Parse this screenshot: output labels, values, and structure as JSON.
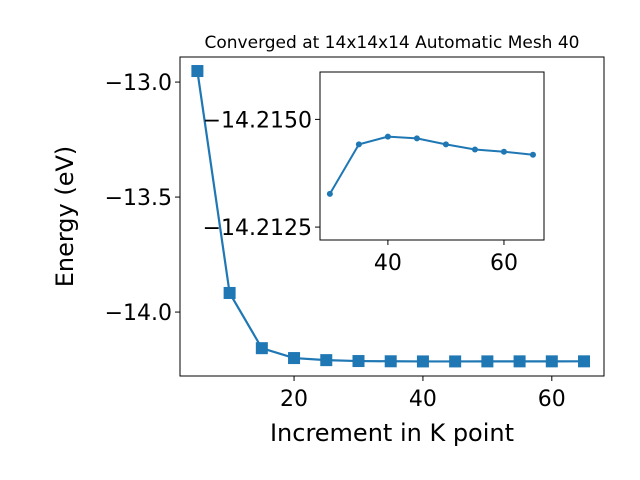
{
  "chart_data": [
    {
      "type": "line",
      "title": "Converged at 14x14x14 Automatic Mesh 40",
      "x_label": "Increment in K point",
      "y_label": "Energy (eV)",
      "x": [
        5,
        10,
        15,
        20,
        25,
        30,
        35,
        40,
        45,
        50,
        55,
        60,
        65
      ],
      "series": [
        {
          "name": "Energy",
          "color": "#1f77b4",
          "marker": "square",
          "values": [
            -12.952,
            -13.917,
            -14.157,
            -14.2,
            -14.209,
            -14.213,
            -14.214,
            -14.2146,
            -14.2146,
            -14.2144,
            -14.2143,
            -14.2143,
            -14.2142
          ]
        }
      ],
      "xlim": [
        2.3,
        68.1
      ],
      "ylim": [
        -14.278,
        -12.891
      ],
      "xticks": [
        20,
        40,
        60
      ],
      "yticks": [
        {
          "value": -14.0,
          "label": "−14.0"
        },
        {
          "value": -13.5,
          "label": "−13.5"
        },
        {
          "value": -13.0,
          "label": "−13.0"
        }
      ]
    },
    {
      "type": "line",
      "x": [
        30,
        35,
        40,
        45,
        50,
        55,
        60,
        65
      ],
      "series": [
        {
          "name": "Energy",
          "color": "#1f77b4",
          "marker": "circle",
          "values": [
            -14.21327,
            -14.21442,
            -14.2146,
            -14.21456,
            -14.21442,
            -14.2143,
            -14.21425,
            -14.21418
          ]
        }
      ],
      "xlim": [
        28.3,
        66.9
      ],
      "ylim": [
        -14.2122,
        -14.2161
      ],
      "xticks": [
        40,
        60
      ],
      "yticks": [
        {
          "value": -14.2125,
          "label": "−14.2125"
        },
        {
          "value": -14.215,
          "label": "−14.2150"
        }
      ]
    }
  ]
}
